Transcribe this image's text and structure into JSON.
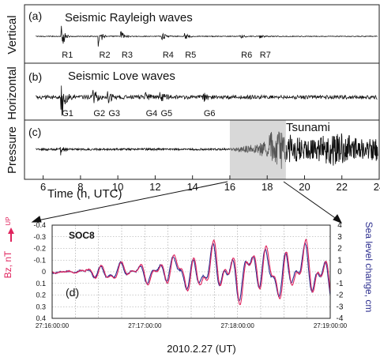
{
  "colors": {
    "trace": "#111111",
    "tsunami_highlight": "#d8d8d8",
    "magnetometer": "#e0245e",
    "sea_level": "#2d2f8f",
    "grid": "#9a9a9a"
  },
  "chart_data": [
    {
      "type": "line",
      "title": "",
      "xlabel": "Time (h, UTC)",
      "xlim": [
        5,
        24
      ],
      "x_ticks": [
        "6",
        "8",
        "10",
        "12",
        "14",
        "16",
        "18",
        "20",
        "22",
        "24"
      ],
      "highlight_range": [
        16,
        19
      ],
      "panels": [
        {
          "id": "a",
          "label": "(a)",
          "ylabel": "Vertical",
          "title": "Seismic Rayleigh waves",
          "arrivals": [
            {
              "name": "R1",
              "t": 7.0
            },
            {
              "name": "R2",
              "t": 9.0
            },
            {
              "name": "R3",
              "t": 10.2
            },
            {
              "name": "R4",
              "t": 12.4
            },
            {
              "name": "R5",
              "t": 13.6
            },
            {
              "name": "R6",
              "t": 16.6
            },
            {
              "name": "R7",
              "t": 17.6
            }
          ]
        },
        {
          "id": "b",
          "label": "(b)",
          "ylabel": "Horizontal",
          "title": "Seismic Love waves",
          "arrivals": [
            {
              "name": "G1",
              "t": 7.0
            },
            {
              "name": "G2",
              "t": 8.7
            },
            {
              "name": "G3",
              "t": 9.5
            },
            {
              "name": "G4",
              "t": 11.5
            },
            {
              "name": "G5",
              "t": 12.3
            },
            {
              "name": "G6",
              "t": 14.6
            }
          ]
        },
        {
          "id": "c",
          "label": "(c)",
          "ylabel": "Pressure",
          "title": "Tsunami",
          "arrivals": []
        }
      ]
    },
    {
      "type": "line",
      "title": "SOC8",
      "panel_label": "(d)",
      "xlabel": "2010.2.27 (UT)",
      "x_ticks": [
        "27:16:00:00",
        "27:17:00:00",
        "27:18:00:00",
        "27:19:00:00"
      ],
      "y_left": {
        "label": "Bz, nT",
        "arrow_label": "UP",
        "range": [
          -0.4,
          0.4
        ],
        "inverted": true,
        "ticks": [
          "-0.4",
          "-0.3",
          "-0.2",
          "-0.1",
          "0",
          "0.1",
          "0.2",
          "0.3",
          "0.4"
        ]
      },
      "y_right": {
        "label": "Sea level change, cm",
        "range": [
          -4,
          4
        ],
        "ticks": [
          "4",
          "3",
          "2",
          "1",
          "0",
          "-1",
          "-2",
          "-3",
          "-4"
        ]
      },
      "grid": true,
      "series": [
        {
          "name": "Bz, nT",
          "axis": "left",
          "color": "#e0245e"
        },
        {
          "name": "Sea level change, cm",
          "axis": "right",
          "color": "#2d2f8f"
        }
      ]
    }
  ]
}
